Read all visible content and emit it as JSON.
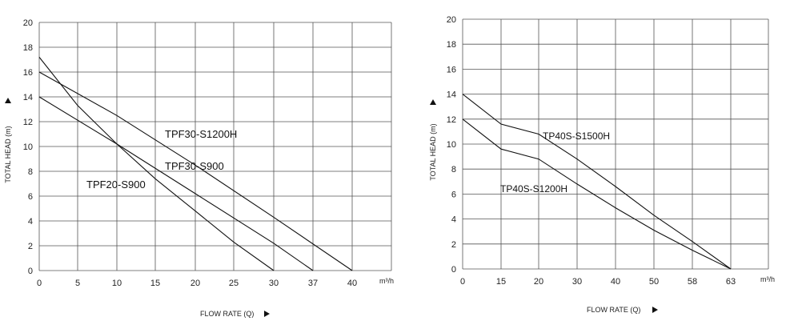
{
  "chart_data": [
    {
      "type": "line",
      "xlabel": "FLOW RATE (Q)",
      "ylabel": "TOTAL HEAD (m)",
      "x_unit": "m³/h",
      "x_ticks": [
        "0",
        "5",
        "10",
        "15",
        "20",
        "25",
        "30",
        "37",
        "40"
      ],
      "y_ticks": [
        "0",
        "2",
        "4",
        "6",
        "8",
        "10",
        "12",
        "14",
        "16",
        "18",
        "20"
      ],
      "ylim": [
        0,
        20
      ],
      "grid": true,
      "series": [
        {
          "name": "TPF30-S1200H",
          "x": [
            0,
            10,
            20,
            30,
            40
          ],
          "y": [
            16,
            12.5,
            8.5,
            4.3,
            0
          ]
        },
        {
          "name": "TPF30-S900",
          "x": [
            0,
            10,
            20,
            30,
            37
          ],
          "y": [
            14,
            10.2,
            6.2,
            2.2,
            0
          ]
        },
        {
          "name": "TPF20-S900",
          "x": [
            0,
            5,
            10,
            15,
            20,
            25,
            30
          ],
          "y": [
            17.2,
            13.3,
            10.2,
            7.4,
            4.8,
            2.3,
            0
          ]
        }
      ]
    },
    {
      "type": "line",
      "xlabel": "FLOW RATE (Q)",
      "ylabel": "TOTAL HEAD (m)",
      "x_unit": "m³/h",
      "x_ticks": [
        "0",
        "15",
        "20",
        "30",
        "40",
        "50",
        "58",
        "63"
      ],
      "y_ticks": [
        "0",
        "2",
        "4",
        "6",
        "8",
        "10",
        "12",
        "14",
        "16",
        "18",
        "20"
      ],
      "ylim": [
        0,
        20
      ],
      "grid": true,
      "series": [
        {
          "name": "TP40S-S1500H",
          "x": [
            0,
            15,
            20,
            30,
            40,
            50,
            58,
            63
          ],
          "y": [
            14,
            11.6,
            10.8,
            8.8,
            6.6,
            4.3,
            2.2,
            0
          ]
        },
        {
          "name": "TP40S-S1200H",
          "x": [
            0,
            15,
            20,
            30,
            40,
            50,
            58,
            63
          ],
          "y": [
            12,
            9.6,
            8.8,
            6.8,
            4.9,
            3.1,
            1.5,
            0
          ]
        }
      ]
    }
  ]
}
